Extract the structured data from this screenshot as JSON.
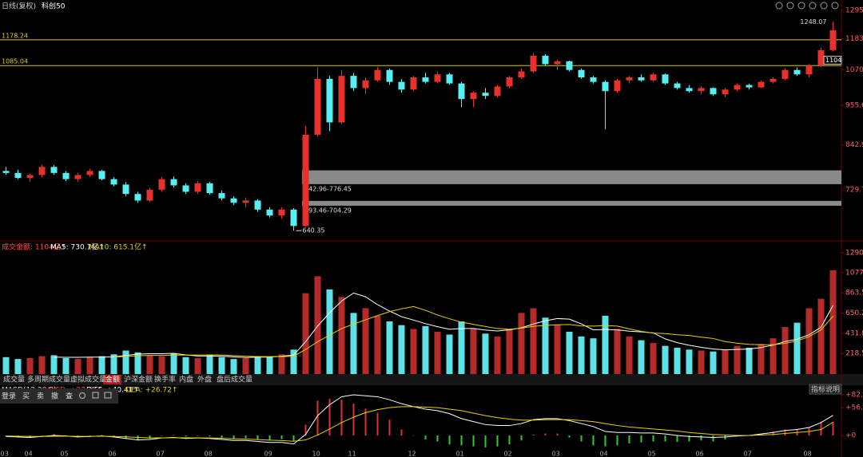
{
  "header": {
    "period": "日线(复权)",
    "symbol": "科创50"
  },
  "tabs": [
    "成交量",
    "多周期成交量",
    "虚拟成交量",
    "金额",
    "沪深金额",
    "换手率",
    "内盘",
    "外盘",
    "盘后成交量"
  ],
  "active_tab": 3,
  "toolbar": [
    "登录",
    "买",
    "卖",
    "撤",
    "查"
  ],
  "indicator_button": "指标说明",
  "chart_data": [
    {
      "type": "candlestick",
      "categories": [
        "03",
        null,
        "04",
        null,
        null,
        "05",
        null,
        null,
        null,
        "06",
        null,
        null,
        null,
        "07",
        null,
        null,
        null,
        "08",
        null,
        null,
        null,
        null,
        "09",
        null,
        null,
        null,
        "10",
        null,
        null,
        "11",
        null,
        null,
        null,
        null,
        "12",
        null,
        null,
        null,
        "01",
        null,
        null,
        null,
        "02",
        null,
        null,
        null,
        "03",
        null,
        null,
        null,
        "04",
        null,
        null,
        null,
        "05",
        null,
        null,
        null,
        "06",
        null,
        null,
        null,
        "07",
        null,
        null,
        null,
        null,
        "08",
        null,
        null
      ],
      "ohlc": [
        [
          775,
          785,
          765,
          770
        ],
        [
          770,
          778,
          755,
          758
        ],
        [
          758,
          768,
          748,
          765
        ],
        [
          765,
          790,
          760,
          785
        ],
        [
          785,
          790,
          765,
          770
        ],
        [
          770,
          775,
          750,
          755
        ],
        [
          755,
          770,
          748,
          765
        ],
        [
          765,
          780,
          760,
          775
        ],
        [
          775,
          778,
          752,
          755
        ],
        [
          755,
          760,
          738,
          742
        ],
        [
          742,
          748,
          715,
          720
        ],
        [
          720,
          725,
          700,
          705
        ],
        [
          705,
          735,
          702,
          730
        ],
        [
          730,
          760,
          725,
          755
        ],
        [
          755,
          762,
          735,
          740
        ],
        [
          740,
          745,
          720,
          725
        ],
        [
          725,
          750,
          720,
          745
        ],
        [
          745,
          748,
          718,
          722
        ],
        [
          722,
          728,
          705,
          710
        ],
        [
          710,
          715,
          695,
          700
        ],
        [
          700,
          712,
          690,
          705
        ],
        [
          705,
          708,
          680,
          685
        ],
        [
          685,
          690,
          668,
          672
        ],
        [
          672,
          690,
          665,
          685
        ],
        [
          685,
          688,
          640.35,
          650
        ],
        [
          650,
          895,
          648,
          870
        ],
        [
          870,
          1080,
          865,
          1040
        ],
        [
          1040,
          1050,
          880,
          905
        ],
        [
          905,
          1070,
          900,
          1050
        ],
        [
          1050,
          1060,
          1000,
          1010
        ],
        [
          1010,
          1045,
          990,
          1035
        ],
        [
          1035,
          1080,
          1030,
          1070
        ],
        [
          1070,
          1075,
          1020,
          1030
        ],
        [
          1030,
          1040,
          995,
          1005
        ],
        [
          1005,
          1050,
          1000,
          1045
        ],
        [
          1045,
          1060,
          1025,
          1030
        ],
        [
          1030,
          1065,
          1025,
          1055
        ],
        [
          1055,
          1060,
          1020,
          1025
        ],
        [
          1025,
          1030,
          950,
          975
        ],
        [
          975,
          1000,
          950,
          995
        ],
        [
          995,
          1010,
          975,
          985
        ],
        [
          985,
          1020,
          980,
          1015
        ],
        [
          1015,
          1050,
          1010,
          1045
        ],
        [
          1045,
          1075,
          1040,
          1065
        ],
        [
          1065,
          1130,
          1060,
          1120
        ],
        [
          1120,
          1125,
          1085,
          1090
        ],
        [
          1090,
          1105,
          1070,
          1100
        ],
        [
          1100,
          1102,
          1065,
          1070
        ],
        [
          1070,
          1075,
          1040,
          1045
        ],
        [
          1045,
          1050,
          1025,
          1030
        ],
        [
          1030,
          1035,
          885,
          1000
        ],
        [
          1000,
          1040,
          995,
          1035
        ],
        [
          1035,
          1050,
          1025,
          1045
        ],
        [
          1045,
          1055,
          1030,
          1035
        ],
        [
          1035,
          1060,
          1030,
          1055
        ],
        [
          1055,
          1058,
          1020,
          1025
        ],
        [
          1025,
          1030,
          1005,
          1010
        ],
        [
          1010,
          1020,
          995,
          1000
        ],
        [
          1000,
          1015,
          990,
          1010
        ],
        [
          1010,
          1012,
          985,
          990
        ],
        [
          990,
          1010,
          982,
          1005
        ],
        [
          1005,
          1025,
          1000,
          1020
        ],
        [
          1020,
          1025,
          1005,
          1012
        ],
        [
          1012,
          1035,
          1010,
          1030
        ],
        [
          1030,
          1045,
          1025,
          1040
        ],
        [
          1040,
          1075,
          1035,
          1070
        ],
        [
          1070,
          1078,
          1050,
          1055
        ],
        [
          1055,
          1090,
          1045,
          1085
        ],
        [
          1085,
          1150,
          1080,
          1140
        ],
        [
          1140,
          1248.07,
          1135,
          1215
        ]
      ],
      "up_color": "#e8302c",
      "down_color": "#54f0f4",
      "log": true,
      "ylim": [
        623,
        1338
      ],
      "yticks": [
        1295,
        1183,
        1070,
        955.6,
        842.9,
        729.7
      ],
      "hlines": [
        1178.24,
        1085.04
      ],
      "hline_color": "#d8cc00",
      "zones": [
        {
          "low": 742.96,
          "high": 776.45,
          "label": "742.96-776.45"
        },
        {
          "low": 693.46,
          "high": 704.29,
          "label": "693.46-704.29"
        }
      ],
      "zone_color": "#8a8a8a",
      "high_label": "1248.07",
      "low_label": "640.35",
      "price_marker": 1104
    },
    {
      "type": "volume",
      "legend": [
        {
          "text": "成交金额: 1104亿↑",
          "color": "#ff4a4a"
        },
        {
          "text": "MA5: 730.1亿↑",
          "color": "#ffffff"
        },
        {
          "text": "MA10: 615.1亿↑",
          "color": "#e8d000"
        }
      ],
      "values": [
        180,
        160,
        170,
        190,
        200,
        170,
        160,
        180,
        190,
        210,
        250,
        230,
        200,
        190,
        220,
        180,
        170,
        200,
        180,
        160,
        170,
        190,
        180,
        210,
        260,
        860,
        1040,
        900,
        820,
        650,
        700,
        620,
        560,
        520,
        480,
        510,
        450,
        420,
        560,
        480,
        430,
        400,
        480,
        650,
        700,
        600,
        520,
        450,
        400,
        380,
        620,
        480,
        400,
        360,
        330,
        300,
        280,
        260,
        250,
        240,
        260,
        300,
        280,
        320,
        380,
        500,
        546,
        700,
        800,
        1104
      ],
      "up_color": "#b42a2a",
      "down_color": "#5ce1e6",
      "series": [
        {
          "color": "#ffffff",
          "values": [
            null,
            null,
            null,
            null,
            180,
            178,
            178,
            180,
            180,
            182,
            198,
            212,
            216,
            216,
            220,
            204,
            192,
            192,
            190,
            182,
            176,
            180,
            180,
            190,
            202,
            344,
            510,
            652,
            776,
            862,
            822,
            738,
            670,
            610,
            574,
            536,
            504,
            476,
            484,
            484,
            468,
            458,
            470,
            492,
            532,
            566,
            590,
            584,
            534,
            470,
            474,
            470,
            456,
            448,
            438,
            374,
            334,
            306,
            284,
            266,
            258,
            262,
            266,
            282,
            308,
            346,
            370,
            418,
            498,
            730.1
          ]
        },
        {
          "color": "#e8d000",
          "values": [
            null,
            null,
            null,
            null,
            null,
            null,
            null,
            null,
            null,
            181,
            187,
            195,
            198,
            198,
            201,
            201,
            202,
            204,
            202,
            196,
            190,
            186,
            186,
            186,
            189,
            262,
            344,
            414,
            484,
            531,
            576,
            621,
            664,
            694,
            718,
            678,
            628,
            588,
            552,
            528,
            506,
            484,
            476,
            488,
            508,
            517,
            524,
            527,
            512,
            510,
            516,
            510,
            480,
            454,
            436,
            430,
            418,
            410,
            392,
            378,
            346,
            328,
            316,
            312,
            312,
            326,
            352,
            398,
            470,
            615.1
          ]
        }
      ],
      "ylim": [
        0,
        1391
      ],
      "yticks": [
        1290,
        1077,
        863.5,
        650.2,
        431.8,
        218.5
      ]
    },
    {
      "type": "macd",
      "legend": [
        {
          "text": "MACD(12,26,9)",
          "color": "#dddddd"
        },
        {
          "text": "MACD: +27.37↑",
          "color": "#ff4040"
        },
        {
          "text": "DIFF: +40.41↑",
          "color": "#ffffff"
        },
        {
          "text": "DEA: +26.72↑",
          "color": "#e8d000"
        }
      ],
      "values": [
        -2,
        -3,
        -4,
        0,
        3,
        0.8,
        -2.6,
        -0.4,
        1.2,
        -2.2,
        -6.6,
        -10,
        -6.4,
        -0.4,
        1.2,
        -2.2,
        -0.2,
        -1.8,
        -4.6,
        -6.8,
        -5.4,
        -7.6,
        -9.2,
        -7.4,
        -10.8,
        21.8,
        70,
        74,
        72,
        64,
        54,
        46,
        32,
        12,
        0,
        -8,
        -12,
        -18,
        -20,
        -22,
        -24,
        -22,
        -18,
        -10,
        2,
        4,
        4,
        -4,
        -12,
        -20,
        -22,
        -20,
        -16,
        -14,
        -12,
        -12,
        -13,
        -12,
        -10,
        -12,
        -8,
        -2,
        0,
        4,
        8,
        12,
        12,
        16,
        28,
        27.37
      ],
      "up_color": "#e03030",
      "down_color": "#2ecc2e",
      "series": [
        {
          "color": "#ffffff",
          "values": [
            -2,
            -3,
            -4,
            -2,
            0,
            -1,
            -3,
            -2,
            -1,
            -3,
            -6,
            -9,
            -8,
            -5,
            -4,
            -6,
            -5,
            -6,
            -8,
            -10,
            -10,
            -12,
            -14,
            -14,
            -17,
            2,
            40,
            62,
            78,
            82,
            80,
            78,
            72,
            64,
            58,
            53,
            50,
            44,
            34,
            28,
            22,
            20,
            20,
            24,
            32,
            34,
            34,
            30,
            24,
            18,
            8,
            6,
            6,
            5,
            5,
            3,
            0,
            -2,
            -3,
            -4,
            -3,
            -1,
            0,
            3,
            6,
            10,
            12,
            16,
            26,
            40.41
          ]
        },
        {
          "color": "#e8d000",
          "values": [
            -1,
            -1.5,
            -2,
            -2,
            -1.5,
            -1.4,
            -1.7,
            -1.8,
            -1.6,
            -1.9,
            -2.7,
            -4,
            -4.8,
            -4.8,
            -4.6,
            -4.9,
            -4.9,
            -5.1,
            -5.7,
            -6.6,
            -7.3,
            -8.2,
            -9.4,
            -10.3,
            -11.6,
            -8.9,
            0.9,
            13,
            26,
            37,
            46,
            52,
            56,
            58,
            58,
            57,
            56,
            53,
            50,
            45,
            40,
            36,
            33,
            31,
            31,
            32,
            32,
            32,
            30,
            28,
            24,
            20,
            17,
            15,
            13,
            11,
            9,
            6,
            4,
            2,
            1,
            0,
            0,
            1,
            2,
            4,
            6,
            8,
            12,
            26.72
          ]
        }
      ],
      "ylim": [
        -30.5,
        98
      ],
      "yticks": [
        {
          "value": 82.02,
          "label": "+82.02"
        },
        {
          "value": 56.3,
          "label": "+56.30"
        },
        {
          "value": 0,
          "label": "+0"
        }
      ]
    }
  ]
}
